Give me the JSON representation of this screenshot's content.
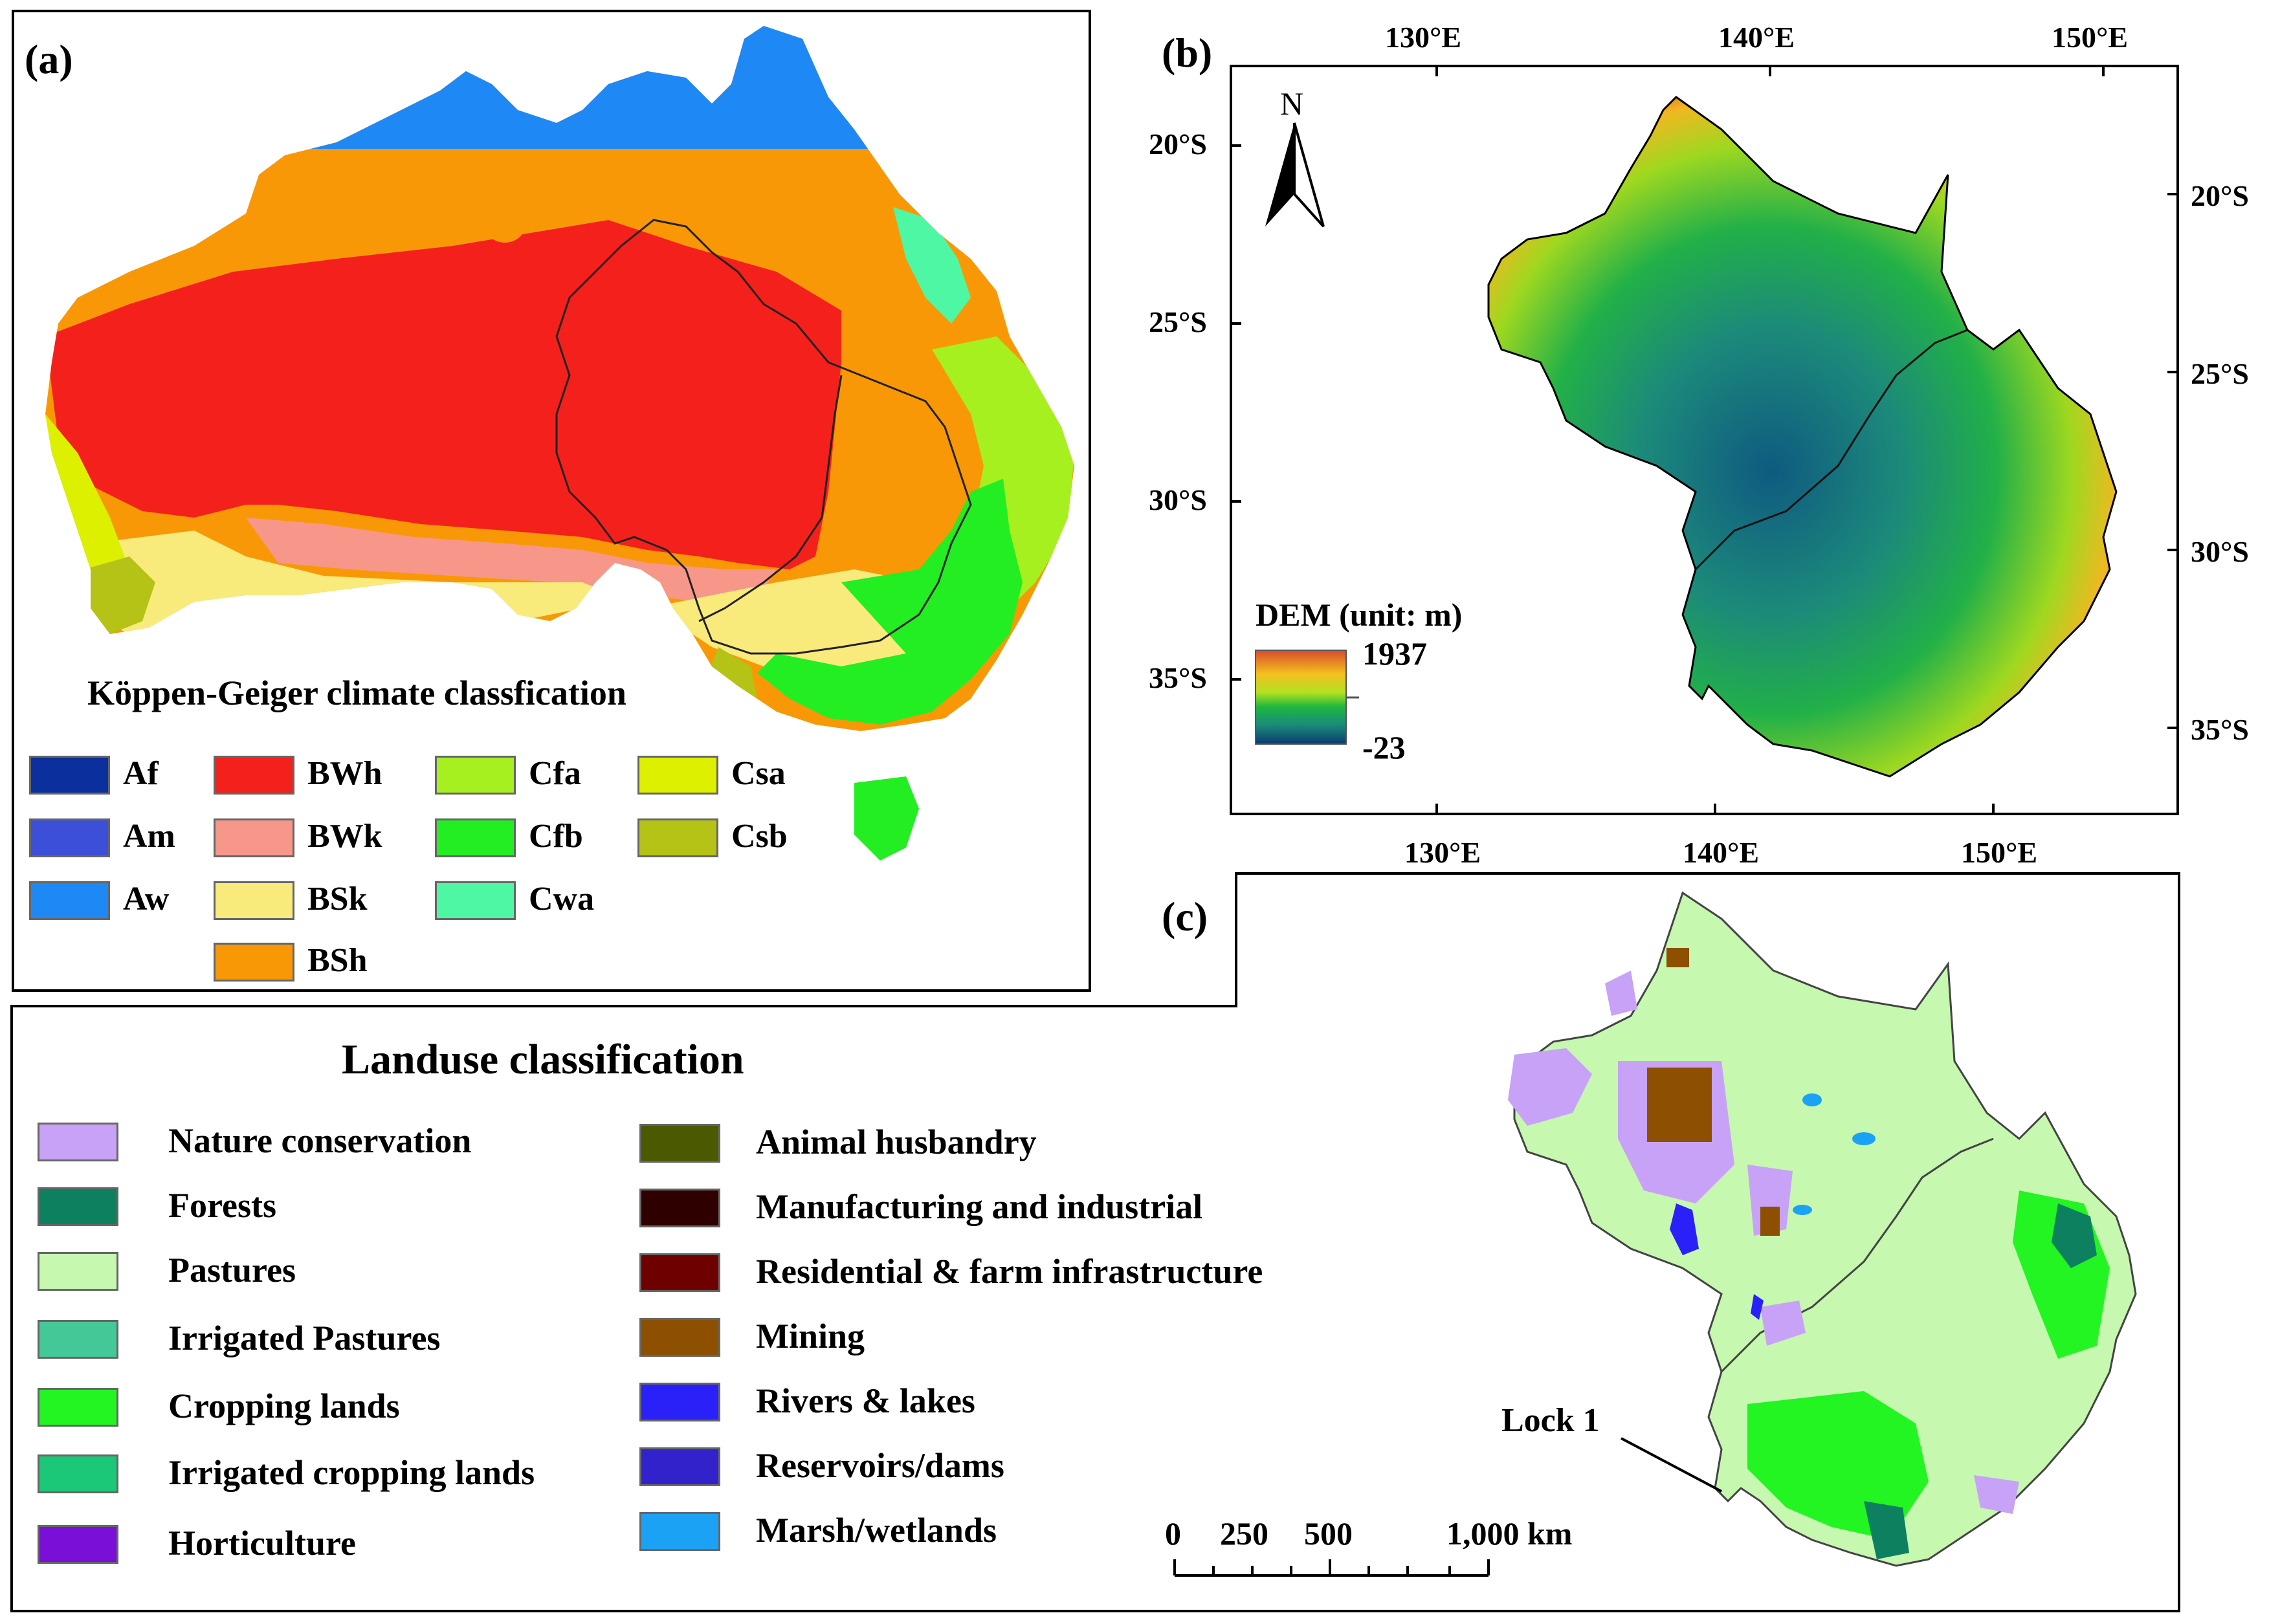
{
  "colors": {
    "Af": "#0b2f9c",
    "Am": "#3b4fd8",
    "Aw": "#1e88f5",
    "BWh": "#f4201b",
    "BWk": "#f7978a",
    "BSk": "#f9ea7c",
    "BSh": "#f99806",
    "Cfa": "#a6f020",
    "Cfb": "#22ee22",
    "Cwa": "#4ef7a4",
    "Csa": "#dcf000",
    "Csb": "#b5c216",
    "nature": "#c8a2f7",
    "forests": "#0d8060",
    "pastures": "#c6f8b0",
    "irr_pastures": "#45c898",
    "cropping": "#22f522",
    "irr_cropping": "#1ac878",
    "horticulture": "#7a0fd8",
    "animal": "#4b5a00",
    "manufacturing": "#2e0000",
    "residential": "#6e0000",
    "mining": "#8c5000",
    "rivers": "#2a20f8",
    "reservoirs": "#3222cc",
    "marsh": "#1ca2f5"
  },
  "panel_a": {
    "letter": "(a)",
    "legend_title": "Köppen-Geiger climate classfication",
    "classes": [
      {
        "code": "Af",
        "label": "Af"
      },
      {
        "code": "Am",
        "label": "Am"
      },
      {
        "code": "Aw",
        "label": "Aw"
      },
      {
        "code": "BWh",
        "label": "BWh"
      },
      {
        "code": "BWk",
        "label": "BWk"
      },
      {
        "code": "BSk",
        "label": "BSk"
      },
      {
        "code": "BSh",
        "label": "BSh"
      },
      {
        "code": "Cfa",
        "label": "Cfa"
      },
      {
        "code": "Cfb",
        "label": "Cfb"
      },
      {
        "code": "Cwa",
        "label": "Cwa"
      },
      {
        "code": "Csa",
        "label": "Csa"
      },
      {
        "code": "Csb",
        "label": "Csb"
      }
    ]
  },
  "panel_b": {
    "letter": "(b)",
    "north": "N",
    "top_ticks": [
      "130°E",
      "140°E",
      "150°E"
    ],
    "bottom_ticks": [
      "130°E",
      "140°E",
      "150°E"
    ],
    "left_ticks": [
      "20°S",
      "25°S",
      "30°S",
      "35°S"
    ],
    "right_ticks": [
      "20°S",
      "25°S",
      "30°S",
      "35°S"
    ],
    "dem_title": "DEM (unit: m)",
    "dem_max": "1937",
    "dem_min": "-23"
  },
  "panel_c": {
    "letter": "(c)",
    "lock_label": "Lock 1",
    "scale_labels": [
      "0",
      "250",
      "500",
      "1,000 km"
    ]
  },
  "landuse": {
    "title": "Landuse classification",
    "left": [
      {
        "key": "nature",
        "label": "Nature conservation"
      },
      {
        "key": "forests",
        "label": "Forests"
      },
      {
        "key": "pastures",
        "label": "Pastures"
      },
      {
        "key": "irr_pastures",
        "label": "Irrigated Pastures"
      },
      {
        "key": "cropping",
        "label": "Cropping lands"
      },
      {
        "key": "irr_cropping",
        "label": "Irrigated cropping lands"
      },
      {
        "key": "horticulture",
        "label": "Horticulture"
      }
    ],
    "right": [
      {
        "key": "animal",
        "label": "Animal husbandry"
      },
      {
        "key": "manufacturing",
        "label": "Manufacturing and industrial"
      },
      {
        "key": "residential",
        "label": "Residential & farm infrastructure"
      },
      {
        "key": "mining",
        "label": "Mining"
      },
      {
        "key": "rivers",
        "label": "Rivers & lakes"
      },
      {
        "key": "reservoirs",
        "label": "Reservoirs/dams"
      },
      {
        "key": "marsh",
        "label": "Marsh/wetlands"
      }
    ]
  }
}
